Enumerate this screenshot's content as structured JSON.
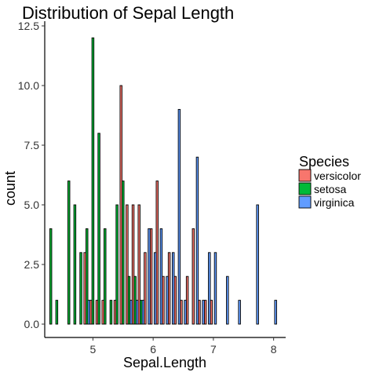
{
  "chart_data": {
    "type": "bar",
    "title": "Distribution of Sepal Length",
    "xlabel": "Sepal.Length",
    "ylabel": "count",
    "xlim": [
      4.2,
      8.2
    ],
    "ylim": [
      0,
      13
    ],
    "xticks": [
      5,
      6,
      7,
      8
    ],
    "yticks": [
      0,
      2.5,
      5,
      7.5,
      10,
      12.5
    ],
    "ytick_labels": [
      "0.0",
      "2.5",
      "5.0",
      "7.5",
      "10.0",
      "12.5"
    ],
    "grid": false,
    "legend": {
      "title": "Species",
      "position": "right",
      "entries": [
        "versicolor",
        "setosa",
        "virginica"
      ]
    },
    "series": [
      {
        "name": "versicolor",
        "color": "#F8766D",
        "points": [
          [
            4.9,
            3
          ],
          [
            5.0,
            1
          ],
          [
            5.1,
            1
          ],
          [
            5.2,
            1
          ],
          [
            5.4,
            1
          ],
          [
            5.5,
            10
          ],
          [
            5.6,
            5
          ],
          [
            5.7,
            5
          ],
          [
            5.8,
            5
          ],
          [
            5.9,
            3
          ],
          [
            6.0,
            4
          ],
          [
            6.1,
            6
          ],
          [
            6.2,
            2
          ],
          [
            6.3,
            3
          ],
          [
            6.4,
            2
          ],
          [
            6.5,
            1
          ],
          [
            6.6,
            2
          ],
          [
            6.7,
            4
          ],
          [
            6.8,
            1
          ],
          [
            6.9,
            1
          ],
          [
            7.0,
            1
          ]
        ]
      },
      {
        "name": "setosa",
        "color": "#00BA38",
        "points": [
          [
            4.3,
            4
          ],
          [
            4.4,
            1
          ],
          [
            4.6,
            6
          ],
          [
            4.7,
            5
          ],
          [
            4.8,
            3
          ],
          [
            4.9,
            4
          ],
          [
            5.0,
            12
          ],
          [
            5.1,
            8
          ],
          [
            5.2,
            4
          ],
          [
            5.3,
            1
          ],
          [
            5.4,
            5
          ],
          [
            5.5,
            6
          ],
          [
            5.6,
            2
          ],
          [
            5.7,
            2
          ],
          [
            5.8,
            1
          ]
        ]
      },
      {
        "name": "virginica",
        "color": "#619CFF",
        "points": [
          [
            4.9,
            1
          ],
          [
            5.6,
            1
          ],
          [
            5.7,
            1
          ],
          [
            5.8,
            1
          ],
          [
            5.9,
            4
          ],
          [
            6.0,
            3
          ],
          [
            6.1,
            4
          ],
          [
            6.2,
            2
          ],
          [
            6.3,
            3
          ],
          [
            6.4,
            9
          ],
          [
            6.5,
            1
          ],
          [
            6.7,
            7
          ],
          [
            6.8,
            1
          ],
          [
            6.9,
            3
          ],
          [
            7.0,
            3
          ],
          [
            7.2,
            2
          ],
          [
            7.4,
            1
          ],
          [
            7.7,
            5
          ],
          [
            8.0,
            1
          ]
        ]
      }
    ]
  }
}
